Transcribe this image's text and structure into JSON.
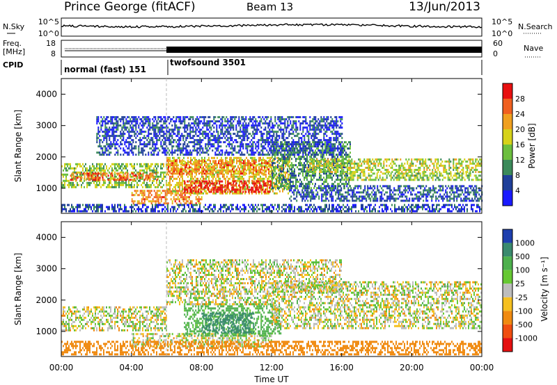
{
  "header": {
    "title": "Prince George (fitACF)",
    "beam": "Beam 13",
    "date": "13/Jun/2013"
  },
  "panels": {
    "nsky_label": "N.Sky",
    "nsearch_label": "N.Search",
    "noise_ticks": {
      "top": "10^5",
      "bottom": "10^0"
    },
    "freq_label": "Freq.",
    "freq_unit": "[MHz]",
    "freq_ticks": [
      "18",
      "8"
    ],
    "nave_label": "Nave",
    "nave_ticks": [
      "60",
      "0"
    ],
    "cpid_label": "CPID",
    "cpid_modes": [
      {
        "name": "normal (fast) 151",
        "start": "00:00",
        "end": "06:00"
      },
      {
        "name": "twofsound 3501",
        "start": "06:00",
        "end": "24:00"
      }
    ]
  },
  "colorbars": {
    "power": {
      "title": "Power [dB]",
      "ticks": [
        "4",
        "8",
        "12",
        "16",
        "20",
        "24",
        "28"
      ],
      "colors": [
        "#1a1aff",
        "#1f3f99",
        "#3b8a5a",
        "#6cbf3e",
        "#d6d21a",
        "#f0a020",
        "#f06020",
        "#e81010"
      ]
    },
    "velocity": {
      "title": "Velocity [m s⁻¹]",
      "ticks": [
        "1000",
        "500",
        "100",
        "25",
        "-25",
        "-100",
        "-500",
        "-1000"
      ],
      "colors": [
        "#1e3fae",
        "#3a8a6e",
        "#4db04d",
        "#66c832",
        "#bdbdbd",
        "#f5c020",
        "#f08a10",
        "#f04e10",
        "#e51010"
      ]
    }
  },
  "chart_data": [
    {
      "type": "heatmap",
      "name": "power",
      "title": "",
      "xlabel": "Time UT",
      "ylabel": "Slant Range [km]",
      "xlim": [
        "00:00",
        "24:00"
      ],
      "ylim": [
        200,
        4500
      ],
      "xticks": [
        "00:00",
        "04:00",
        "08:00",
        "12:00",
        "16:00",
        "20:00",
        "00:00"
      ],
      "yticks": [
        "1000",
        "2000",
        "3000",
        "4000"
      ],
      "value_range_db": [
        0,
        30
      ],
      "regions": [
        {
          "t0": 0,
          "t1": 6,
          "r0": 1050,
          "r1": 1800,
          "db": 14
        },
        {
          "t0": 0.5,
          "t1": 5.5,
          "r0": 1250,
          "r1": 1500,
          "db": 24
        },
        {
          "t0": 4,
          "t1": 8,
          "r0": 550,
          "r1": 950,
          "db": 22
        },
        {
          "t0": 6,
          "t1": 13,
          "r0": 850,
          "r1": 2000,
          "db": 18
        },
        {
          "t0": 7,
          "t1": 12,
          "r0": 900,
          "r1": 1250,
          "db": 29
        },
        {
          "t0": 6,
          "t1": 12,
          "r0": 1500,
          "r1": 1900,
          "db": 22
        },
        {
          "t0": 12,
          "t1": 16.5,
          "r0": 1000,
          "r1": 2500,
          "db": 10
        },
        {
          "t0": 14,
          "t1": 24,
          "r0": 1550,
          "r1": 1950,
          "db": 16
        },
        {
          "t0": 16,
          "t1": 24,
          "r0": 1250,
          "r1": 1500,
          "db": 14
        },
        {
          "t0": 13,
          "t1": 24,
          "r0": 600,
          "r1": 1100,
          "db": 6
        },
        {
          "t0": 0,
          "t1": 24,
          "r0": 250,
          "r1": 500,
          "db": 5
        },
        {
          "t0": 2,
          "t1": 16,
          "r0": 2100,
          "r1": 3300,
          "db": 5
        }
      ]
    },
    {
      "type": "heatmap",
      "name": "velocity",
      "title": "",
      "xlabel": "Time UT",
      "ylabel": "Slant Range [km]",
      "xlim": [
        "00:00",
        "24:00"
      ],
      "ylim": [
        200,
        4500
      ],
      "xticks": [
        "00:00",
        "04:00",
        "08:00",
        "12:00",
        "16:00",
        "20:00",
        "00:00"
      ],
      "yticks": [
        "1000",
        "2000",
        "3000",
        "4000"
      ],
      "value_range_ms": [
        -1000,
        1000
      ],
      "regions": [
        {
          "t0": 0,
          "t1": 6,
          "r0": 1050,
          "r1": 1800,
          "v": 0
        },
        {
          "t0": 4,
          "t1": 12,
          "r0": 550,
          "r1": 950,
          "v": 0
        },
        {
          "t0": 7,
          "t1": 12.5,
          "r0": 900,
          "r1": 1900,
          "v": 120
        },
        {
          "t0": 8,
          "t1": 11,
          "r0": 1000,
          "r1": 1600,
          "v": 450
        },
        {
          "t0": 6,
          "t1": 12,
          "r0": 1900,
          "r1": 2300,
          "v": 0
        },
        {
          "t0": 12,
          "t1": 24,
          "r0": 1100,
          "r1": 2600,
          "v": 0
        },
        {
          "t0": 6,
          "t1": 16,
          "r0": 2300,
          "r1": 3300,
          "v": 0
        },
        {
          "t0": 0,
          "t1": 24,
          "r0": 250,
          "r1": 700,
          "v": -150
        }
      ]
    }
  ]
}
